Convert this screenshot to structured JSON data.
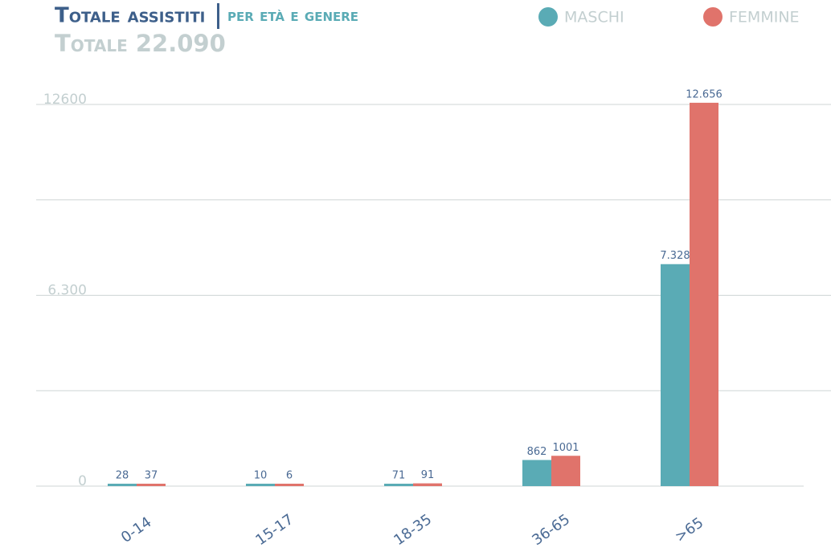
{
  "chart_data": {
    "type": "bar",
    "title": "Totale assistiti",
    "subtitle": "per età e genere",
    "total": "Totale 22.090",
    "categories": [
      "0-14",
      "15-17",
      "18-35",
      "36-65",
      ">65"
    ],
    "series": [
      {
        "name": "MASCHI",
        "color": "#5aabb5",
        "values": [
          28,
          10,
          71,
          862,
          7328
        ],
        "value_labels": [
          "28",
          "10",
          "71",
          "862",
          "7.328"
        ]
      },
      {
        "name": "FEMMINE",
        "color": "#e0736b",
        "values": [
          37,
          6,
          91,
          1001,
          12656
        ],
        "value_labels": [
          "37",
          "6",
          "91",
          "1001",
          "12.656"
        ]
      }
    ],
    "ylim": [
      0,
      12600
    ],
    "yticks": [
      0,
      {
        "value": 6300,
        "label": "6.300"
      },
      12600
    ],
    "minor_gridlines": [
      3150,
      9450
    ],
    "grid": true,
    "legend": "top-right"
  }
}
